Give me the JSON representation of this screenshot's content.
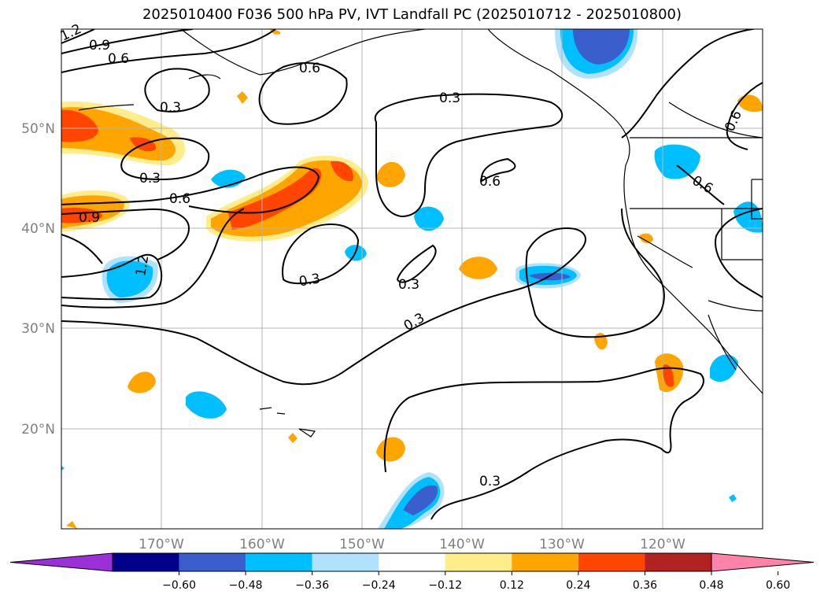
{
  "title": "2025010400 F036 500 hPa PV, IVT Landfall PC (2025010712 - 2025010800)",
  "lat_labels": [
    "50°N",
    "40°N",
    "30°N",
    "20°N"
  ],
  "lon_labels": [
    "170°W",
    "160°W",
    "150°W",
    "140°W",
    "130°W",
    "120°W"
  ],
  "colorbar": {
    "ticks": [
      "−0.60",
      "−0.48",
      "−0.36",
      "−0.24",
      "−0.12",
      "0.12",
      "0.24",
      "0.36",
      "0.48",
      "0.60"
    ],
    "colors": [
      "#9b30d9",
      "#00008b",
      "#3a5fcd",
      "#00bfff",
      "#b0e2ff",
      "#ffffff",
      "#ffec8b",
      "#ffa500",
      "#ff4500",
      "#b22222",
      "#ff82ab"
    ]
  },
  "contour_labels": [
    "1.2",
    "0.9",
    "0.6",
    "0.6",
    "0.3",
    "0.3",
    "0.3",
    "0.6",
    "0.6",
    "0.6",
    "0.9",
    "1.2",
    "0.3",
    "0.3",
    "0.3",
    "0.6",
    "0.3"
  ],
  "extent": {
    "lon_min": -180,
    "lon_max": -110,
    "lat_min": 10,
    "lat_max": 60
  }
}
